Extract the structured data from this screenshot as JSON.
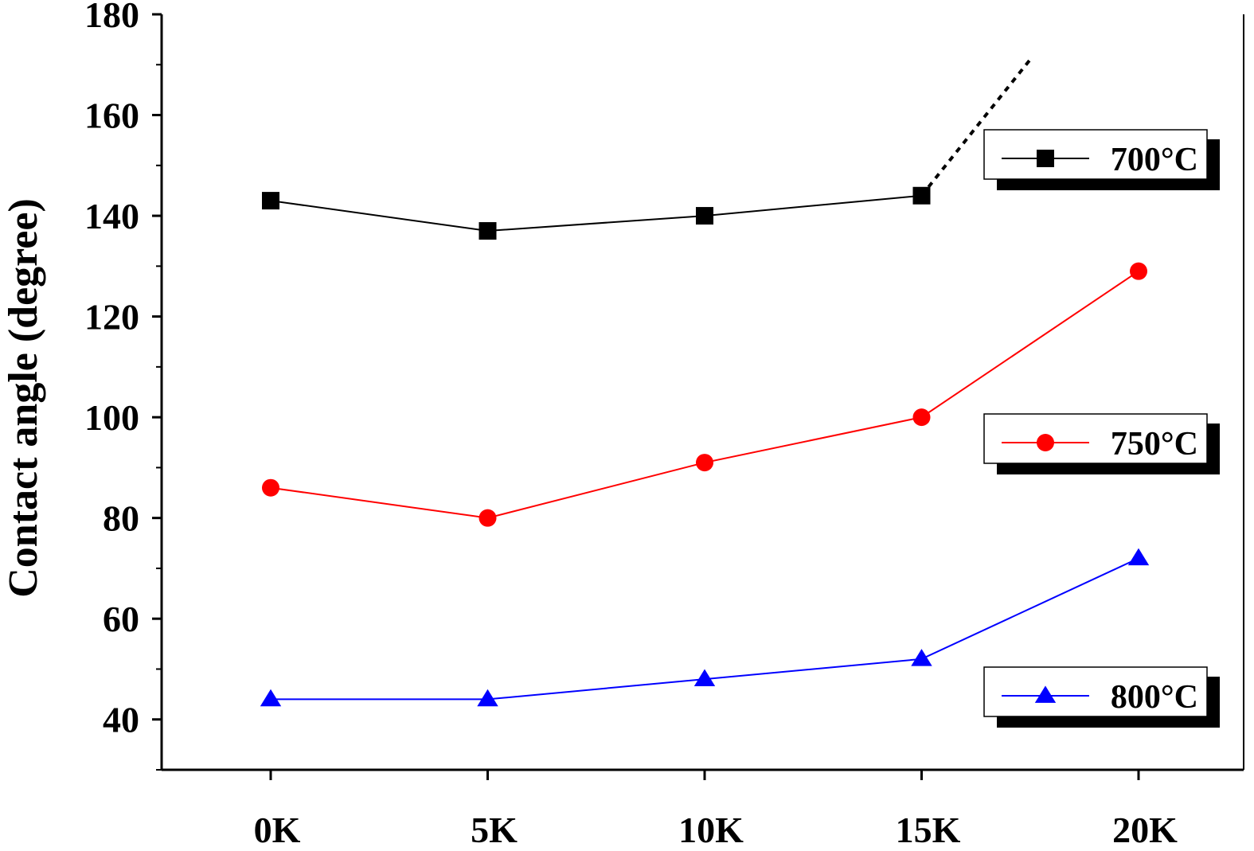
{
  "chart_data": {
    "type": "line",
    "title": "",
    "xlabel": "",
    "ylabel": "Contact angle (degree)",
    "categories": [
      "0K",
      "5K",
      "10K",
      "15K",
      "20K"
    ],
    "ylim": [
      30,
      180
    ],
    "yticks": [
      40,
      60,
      80,
      100,
      120,
      140,
      160,
      180
    ],
    "grid": false,
    "legend_placement": "right",
    "series": [
      {
        "name": "700°C",
        "color": "#000000",
        "marker": "square",
        "values": [
          143,
          137,
          140,
          144,
          null
        ],
        "dotted_extension": {
          "from": [
            3,
            144
          ],
          "to": [
            3.5,
            171
          ]
        }
      },
      {
        "name": "750°C",
        "color": "#ff0000",
        "marker": "circle",
        "values": [
          86,
          80,
          91,
          100,
          129
        ]
      },
      {
        "name": "800°C",
        "color": "#0000ff",
        "marker": "triangle",
        "values": [
          44,
          44,
          48,
          52,
          72
        ]
      }
    ]
  }
}
